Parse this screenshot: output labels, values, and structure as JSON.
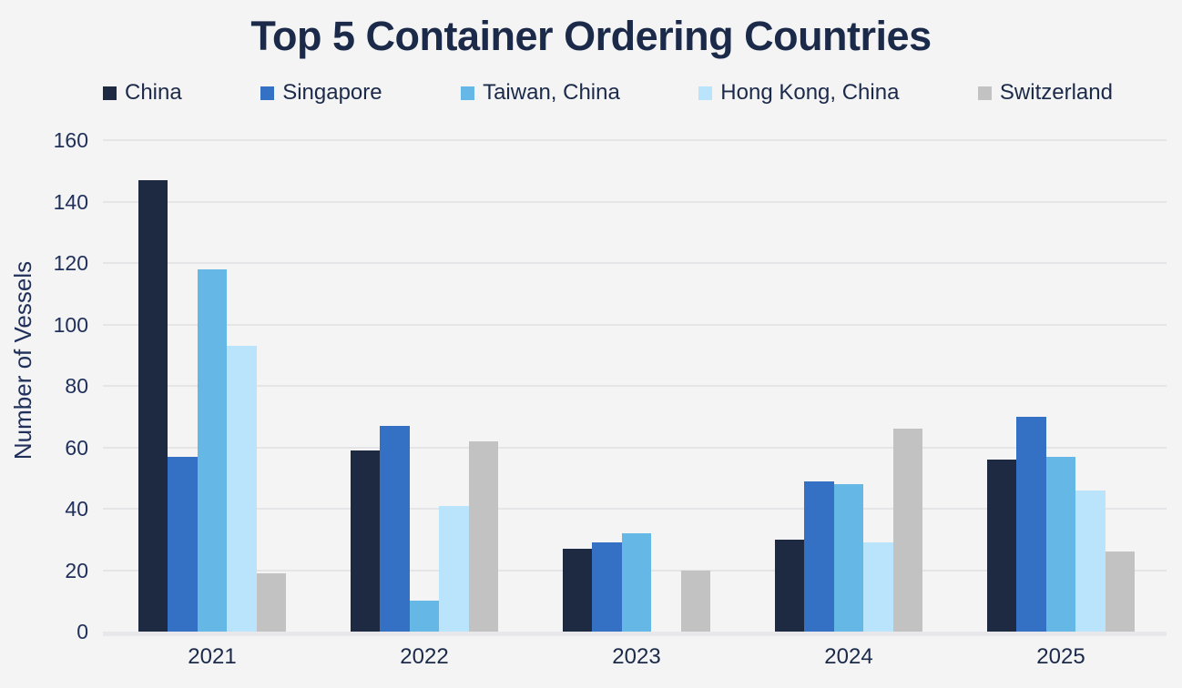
{
  "chart_data": {
    "type": "bar",
    "title": "Top 5 Container Ordering Countries",
    "ylabel": "Number of Vessels",
    "xlabel": "",
    "categories": [
      "2021",
      "2022",
      "2023",
      "2024",
      "2025"
    ],
    "series": [
      {
        "name": "China",
        "color": "#1d2a42",
        "values": [
          147,
          59,
          27,
          30,
          56
        ]
      },
      {
        "name": "Singapore",
        "color": "#3470c4",
        "values": [
          57,
          67,
          29,
          49,
          70
        ]
      },
      {
        "name": "Taiwan, China",
        "color": "#65b7e6",
        "values": [
          118,
          10,
          32,
          48,
          57
        ]
      },
      {
        "name": "Hong Kong, China",
        "color": "#b9e4fb",
        "values": [
          93,
          41,
          0,
          29,
          46
        ]
      },
      {
        "name": "Switzerland",
        "color": "#c2c2c3",
        "values": [
          19,
          62,
          20,
          66,
          26
        ]
      }
    ],
    "ylim": [
      0,
      160
    ],
    "ytick_step": 20,
    "grid": "horizontal",
    "legend_position": "top"
  },
  "colors": {
    "background": "#f4f4f5",
    "text": "#1c2a4a",
    "axis_text": "#20305a",
    "gridline": "#e5e5e7",
    "baseline": "#e8e8ea"
  }
}
